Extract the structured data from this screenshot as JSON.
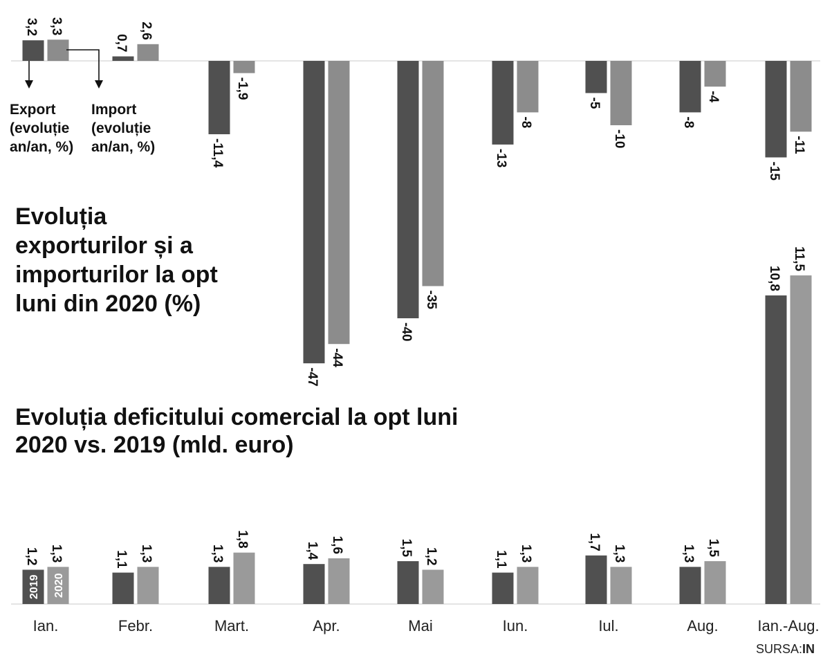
{
  "chart_data": [
    {
      "type": "bar",
      "title": "Evoluția exporturilor și a importurilor la opt luni din 2020 (%)",
      "categories": [
        "Ian.",
        "Febr.",
        "Mart.",
        "Apr.",
        "Mai",
        "Iun.",
        "Iul.",
        "Aug.",
        "Ian.-Aug."
      ],
      "series": [
        {
          "name": "Export (evoluție an/an, %)",
          "values": [
            3.2,
            0.7,
            -11.4,
            -47,
            -40,
            -13,
            -5,
            -8,
            -15
          ],
          "labels": [
            "3,2",
            "0,7",
            "-11,4",
            "-47",
            "-40",
            "-13",
            "-5",
            "-8",
            "-15"
          ],
          "color": "#505050"
        },
        {
          "name": "Import (evoluție an/an, %)",
          "values": [
            3.3,
            2.6,
            -1.9,
            -44,
            -35,
            -8,
            -10,
            -4,
            -11
          ],
          "labels": [
            "3,3",
            "2,6",
            "-1,9",
            "-44",
            "-35",
            "-8",
            "-10",
            "-4",
            "-11"
          ],
          "color": "#8c8c8c"
        }
      ],
      "legend": {
        "export_lines": [
          "Export",
          "(evoluție",
          "an/an, %)"
        ],
        "import_lines": [
          "Import",
          "(evoluție",
          "an/an, %)"
        ]
      }
    },
    {
      "type": "bar",
      "title": "Evoluția deficitului comercial la opt luni 2020 vs. 2019  (mld. euro)",
      "categories": [
        "Ian.",
        "Febr.",
        "Mart.",
        "Apr.",
        "Mai",
        "Iun.",
        "Iul.",
        "Aug.",
        "Ian.-Aug."
      ],
      "series": [
        {
          "name": "2019",
          "values": [
            1.2,
            1.1,
            1.3,
            1.4,
            1.5,
            1.1,
            1.7,
            1.3,
            10.8
          ],
          "labels": [
            "1,2",
            "1,1",
            "1,3",
            "1,4",
            "1,5",
            "1,1",
            "1,7",
            "1,3",
            "10,8"
          ],
          "color": "#505050"
        },
        {
          "name": "2020",
          "values": [
            1.3,
            1.3,
            1.8,
            1.6,
            1.2,
            1.3,
            1.3,
            1.5,
            11.5
          ],
          "labels": [
            "1,3",
            "1,3",
            "1,8",
            "1,6",
            "1,2",
            "1,3",
            "1,3",
            "1,5",
            "11,5"
          ],
          "color": "#9a9a9a"
        }
      ]
    }
  ],
  "title1_lines": [
    "Evoluția",
    "exporturilor și a",
    "importurilor la opt",
    "luni din 2020 (%)"
  ],
  "title2_lines": [
    "Evoluția deficitului comercial la opt luni",
    "2020 vs. 2019  (mld. euro)"
  ],
  "source": {
    "prefix": "SURSA:",
    "name": "IN"
  }
}
